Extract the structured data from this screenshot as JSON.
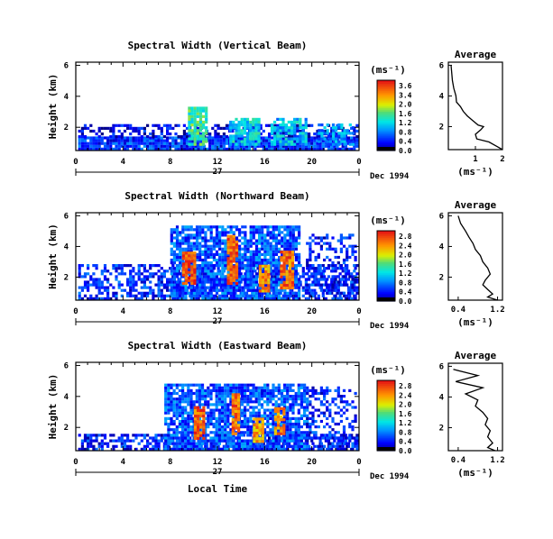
{
  "chart_data": [
    {
      "type": "heatmap",
      "title": "Spectral Width (Vertical Beam)",
      "ylabel": "Height (km)",
      "xticks": [
        "0",
        "4",
        "8",
        "12",
        "16",
        "20",
        "0"
      ],
      "xlim": [
        0,
        24
      ],
      "yticks": [
        "2",
        "4",
        "6"
      ],
      "ylim": [
        0.5,
        6.2
      ],
      "day_label": "27",
      "date_label": "Dec 1994",
      "colorbar": {
        "unit": "(ms⁻¹)",
        "labels": [
          "3.6",
          "3.4",
          "2.0",
          "1.6",
          "1.2",
          "0.8",
          "0.4",
          "0.0"
        ]
      },
      "regions": [
        {
          "t0": 0.2,
          "t1": 23.8,
          "h0": 0.5,
          "h1": 1.3,
          "level": 0.5,
          "density": 0.95
        },
        {
          "t0": 0.2,
          "t1": 23.8,
          "h0": 1.3,
          "h1": 2.2,
          "level": 0.3,
          "density": 0.5
        },
        {
          "t0": 9.5,
          "t1": 11.0,
          "h0": 0.8,
          "h1": 3.2,
          "level": 1.4,
          "density": 0.85
        },
        {
          "t0": 13.0,
          "t1": 15.5,
          "h0": 0.8,
          "h1": 2.6,
          "level": 1.1,
          "density": 0.8
        },
        {
          "t0": 16.5,
          "t1": 19.5,
          "h0": 0.8,
          "h1": 2.6,
          "level": 1.0,
          "density": 0.75
        },
        {
          "t0": 20.5,
          "t1": 23.5,
          "h0": 0.8,
          "h1": 2.2,
          "level": 0.8,
          "density": 0.6
        }
      ],
      "average_panel": {
        "title": "Average",
        "xlabel": "(ms⁻¹)",
        "xticks": [
          "1",
          "2"
        ],
        "xlim": [
          0,
          2
        ],
        "yticks": [
          "2",
          "4",
          "6"
        ],
        "ylim": [
          0.5,
          6.2
        ],
        "x": [
          0.1,
          0.15,
          0.2,
          0.28,
          0.3,
          0.45,
          0.55,
          0.7,
          0.9,
          1.1,
          1.3,
          1.2,
          1.0,
          1.05,
          1.5,
          1.8,
          2.0
        ],
        "y": [
          6.0,
          5.0,
          4.5,
          4.0,
          3.6,
          3.3,
          3.0,
          2.7,
          2.4,
          2.1,
          2.0,
          1.8,
          1.5,
          1.2,
          1.0,
          0.7,
          0.5
        ]
      }
    },
    {
      "type": "heatmap",
      "title": "Spectral Width (Northward Beam)",
      "ylabel": "Height (km)",
      "xticks": [
        "0",
        "4",
        "8",
        "12",
        "16",
        "20",
        "0"
      ],
      "xlim": [
        0,
        24
      ],
      "yticks": [
        "2",
        "4",
        "6"
      ],
      "ylim": [
        0.5,
        6.2
      ],
      "day_label": "27",
      "date_label": "Dec 1994",
      "colorbar": {
        "unit": "(ms⁻¹)",
        "labels": [
          "2.8",
          "2.4",
          "2.0",
          "1.6",
          "1.2",
          "0.8",
          "0.4",
          "0.0"
        ]
      },
      "regions": [
        {
          "t0": 0.2,
          "t1": 23.8,
          "h0": 0.5,
          "h1": 2.8,
          "level": 0.45,
          "density": 0.55
        },
        {
          "t0": 8.0,
          "t1": 19.0,
          "h0": 0.5,
          "h1": 5.2,
          "level": 0.6,
          "density": 0.8
        },
        {
          "t0": 9.0,
          "t1": 10.0,
          "h0": 1.5,
          "h1": 3.5,
          "level": 2.6,
          "density": 0.9
        },
        {
          "t0": 12.8,
          "t1": 13.6,
          "h0": 1.5,
          "h1": 4.6,
          "level": 2.5,
          "density": 0.9
        },
        {
          "t0": 15.5,
          "t1": 16.3,
          "h0": 1.0,
          "h1": 2.8,
          "level": 2.3,
          "density": 0.85
        },
        {
          "t0": 17.3,
          "t1": 18.3,
          "h0": 1.2,
          "h1": 3.6,
          "level": 2.4,
          "density": 0.85
        },
        {
          "t0": 19.5,
          "t1": 23.8,
          "h0": 0.5,
          "h1": 4.8,
          "level": 0.4,
          "density": 0.45
        }
      ],
      "average_panel": {
        "title": "Average",
        "xlabel": "(ms⁻¹)",
        "xticks": [
          "0.4",
          "1.2"
        ],
        "xlim": [
          0.2,
          1.3
        ],
        "yticks": [
          "2",
          "4",
          "6"
        ],
        "ylim": [
          0.5,
          6.2
        ],
        "x": [
          0.4,
          0.45,
          0.55,
          0.62,
          0.7,
          0.75,
          0.85,
          0.9,
          1.0,
          1.05,
          0.95,
          0.9,
          1.0,
          1.1,
          1.0,
          1.2
        ],
        "y": [
          6.0,
          5.5,
          5.0,
          4.6,
          4.2,
          3.8,
          3.4,
          3.0,
          2.6,
          2.2,
          1.8,
          1.5,
          1.2,
          0.9,
          0.7,
          0.5
        ]
      }
    },
    {
      "type": "heatmap",
      "title": "Spectral Width (Eastward Beam)",
      "ylabel": "Height (km)",
      "xlabel": "Local Time",
      "xticks": [
        "0",
        "4",
        "8",
        "12",
        "16",
        "20",
        "0"
      ],
      "xlim": [
        0,
        24
      ],
      "yticks": [
        "2",
        "4",
        "6"
      ],
      "ylim": [
        0.5,
        6.2
      ],
      "day_label": "27",
      "date_label": "Dec 1994",
      "colorbar": {
        "unit": "(ms⁻¹)",
        "labels": [
          "2.8",
          "2.4",
          "2.0",
          "1.6",
          "1.2",
          "0.8",
          "0.4",
          "0.0"
        ]
      },
      "regions": [
        {
          "t0": 0.2,
          "t1": 23.8,
          "h0": 0.5,
          "h1": 1.5,
          "level": 0.4,
          "density": 0.6
        },
        {
          "t0": 7.5,
          "t1": 19.5,
          "h0": 0.5,
          "h1": 4.8,
          "level": 0.6,
          "density": 0.8
        },
        {
          "t0": 10.0,
          "t1": 10.8,
          "h0": 1.2,
          "h1": 3.2,
          "level": 2.5,
          "density": 0.85
        },
        {
          "t0": 13.2,
          "t1": 13.8,
          "h0": 1.5,
          "h1": 4.2,
          "level": 2.4,
          "density": 0.85
        },
        {
          "t0": 15.0,
          "t1": 15.8,
          "h0": 1.0,
          "h1": 2.6,
          "level": 2.2,
          "density": 0.8
        },
        {
          "t0": 16.8,
          "t1": 17.6,
          "h0": 1.5,
          "h1": 3.2,
          "level": 2.3,
          "density": 0.8
        },
        {
          "t0": 19.5,
          "t1": 23.8,
          "h0": 0.5,
          "h1": 4.6,
          "level": 0.45,
          "density": 0.4
        }
      ],
      "average_panel": {
        "title": "Average",
        "xlabel": "(ms⁻¹)",
        "xticks": [
          "0.4",
          "1.2"
        ],
        "xlim": [
          0.2,
          1.3
        ],
        "yticks": [
          "2",
          "4",
          "6"
        ],
        "ylim": [
          0.5,
          6.2
        ],
        "x": [
          0.3,
          0.8,
          0.35,
          0.9,
          0.55,
          0.8,
          0.75,
          0.9,
          1.0,
          0.95,
          1.05,
          1.0,
          1.1,
          1.0,
          1.15
        ],
        "y": [
          5.8,
          5.4,
          5.0,
          4.6,
          4.2,
          3.8,
          3.4,
          3.0,
          2.6,
          2.2,
          1.8,
          1.4,
          1.0,
          0.7,
          0.5
        ]
      }
    }
  ]
}
